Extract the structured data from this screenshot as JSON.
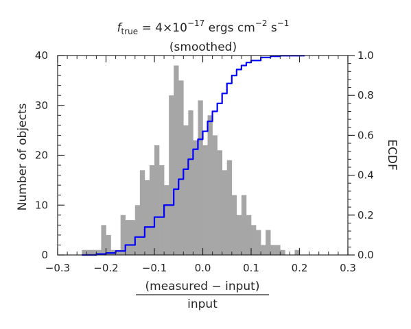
{
  "chart_data": {
    "type": "bar",
    "title": {
      "f_symbol": "f",
      "f_subscript": "true",
      "equals": " = ",
      "coefficient": "4×10",
      "exponent": "−17",
      "units_a": " ergs cm",
      "units_a_exp": "−2",
      "units_b": " s",
      "units_b_exp": "−1"
    },
    "subtitle": "(smoothed)",
    "xlabel_numerator": "(measured − input)",
    "xlabel_denominator": "input",
    "ylabel": "Number of objects",
    "y2label": "ECDF",
    "xlim": [
      -0.3,
      0.3
    ],
    "ylim": [
      0,
      40
    ],
    "y2lim": [
      0,
      1
    ],
    "xticks": [
      -0.3,
      -0.2,
      -0.1,
      0.0,
      0.1,
      0.2,
      0.3
    ],
    "xtick_labels": [
      "−0.3",
      "−0.2",
      "−0.1",
      "0.0",
      "0.1",
      "0.2",
      "0.3"
    ],
    "yticks": [
      0,
      10,
      20,
      30,
      40
    ],
    "ytick_labels": [
      "0",
      "10",
      "20",
      "30",
      "40"
    ],
    "y2ticks": [
      0,
      0.2,
      0.4,
      0.6,
      0.8,
      1.0
    ],
    "y2tick_labels": [
      "0.0",
      "0.2",
      "0.4",
      "0.6",
      "0.8",
      "1.0"
    ],
    "histogram": {
      "bin_width": 0.01,
      "color": "#a6a6a6",
      "bins": [
        {
          "left": -0.25,
          "count": 1
        },
        {
          "left": -0.24,
          "count": 1
        },
        {
          "left": -0.23,
          "count": 1
        },
        {
          "left": -0.22,
          "count": 1
        },
        {
          "left": -0.21,
          "count": 6
        },
        {
          "left": -0.2,
          "count": 4
        },
        {
          "left": -0.19,
          "count": 1
        },
        {
          "left": -0.18,
          "count": 1
        },
        {
          "left": -0.17,
          "count": 8
        },
        {
          "left": -0.16,
          "count": 7
        },
        {
          "left": -0.15,
          "count": 7
        },
        {
          "left": -0.14,
          "count": 10
        },
        {
          "left": -0.13,
          "count": 17
        },
        {
          "left": -0.12,
          "count": 15
        },
        {
          "left": -0.11,
          "count": 18
        },
        {
          "left": -0.1,
          "count": 22
        },
        {
          "left": -0.09,
          "count": 18
        },
        {
          "left": -0.08,
          "count": 14
        },
        {
          "left": -0.07,
          "count": 32
        },
        {
          "left": -0.06,
          "count": 38
        },
        {
          "left": -0.05,
          "count": 35
        },
        {
          "left": -0.04,
          "count": 26
        },
        {
          "left": -0.03,
          "count": 29
        },
        {
          "left": -0.02,
          "count": 23
        },
        {
          "left": -0.01,
          "count": 31
        },
        {
          "left": 0.0,
          "count": 22
        },
        {
          "left": 0.01,
          "count": 28
        },
        {
          "left": 0.02,
          "count": 24
        },
        {
          "left": 0.03,
          "count": 21
        },
        {
          "left": 0.04,
          "count": 17
        },
        {
          "left": 0.05,
          "count": 19
        },
        {
          "left": 0.06,
          "count": 12
        },
        {
          "left": 0.07,
          "count": 8
        },
        {
          "left": 0.08,
          "count": 12
        },
        {
          "left": 0.09,
          "count": 8
        },
        {
          "left": 0.1,
          "count": 6
        },
        {
          "left": 0.11,
          "count": 5
        },
        {
          "left": 0.12,
          "count": 2
        },
        {
          "left": 0.13,
          "count": 5
        },
        {
          "left": 0.14,
          "count": 2
        },
        {
          "left": 0.15,
          "count": 2
        },
        {
          "left": 0.16,
          "count": 1
        },
        {
          "left": 0.17,
          "count": 0
        },
        {
          "left": 0.18,
          "count": 0
        },
        {
          "left": 0.19,
          "count": 1
        }
      ]
    },
    "ecdf": {
      "color": "#0000ff",
      "points": [
        [
          -0.25,
          0.0
        ],
        [
          -0.22,
          0.005
        ],
        [
          -0.2,
          0.01
        ],
        [
          -0.18,
          0.02
        ],
        [
          -0.16,
          0.05
        ],
        [
          -0.14,
          0.09
        ],
        [
          -0.12,
          0.14
        ],
        [
          -0.1,
          0.19
        ],
        [
          -0.08,
          0.25
        ],
        [
          -0.06,
          0.33
        ],
        [
          -0.05,
          0.38
        ],
        [
          -0.04,
          0.43
        ],
        [
          -0.03,
          0.48
        ],
        [
          -0.02,
          0.53
        ],
        [
          -0.01,
          0.58
        ],
        [
          0.0,
          0.62
        ],
        [
          0.01,
          0.67
        ],
        [
          0.02,
          0.72
        ],
        [
          0.03,
          0.76
        ],
        [
          0.04,
          0.81
        ],
        [
          0.05,
          0.86
        ],
        [
          0.06,
          0.9
        ],
        [
          0.07,
          0.93
        ],
        [
          0.08,
          0.95
        ],
        [
          0.09,
          0.965
        ],
        [
          0.1,
          0.975
        ],
        [
          0.12,
          0.99
        ],
        [
          0.14,
          0.996
        ],
        [
          0.16,
          0.999
        ],
        [
          0.21,
          1.0
        ]
      ]
    }
  }
}
